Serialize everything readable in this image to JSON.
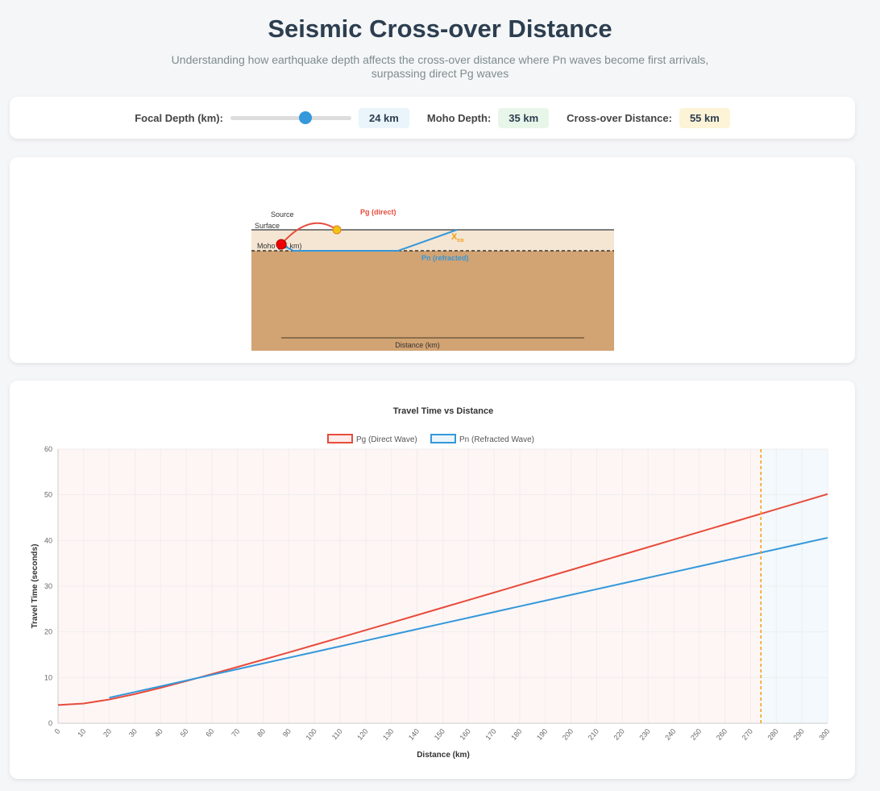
{
  "header": {
    "title": "Seismic Cross-over Distance",
    "subtitle": "Understanding how earthquake depth affects the cross-over distance where Pn waves become first arrivals, surpassing direct Pg waves"
  },
  "controls": {
    "focal_label": "Focal Depth (km):",
    "focal_value": "24 km",
    "focal_slider_fraction": 0.62,
    "moho_label": "Moho Depth:",
    "moho_value": "35 km",
    "crossover_label": "Cross-over Distance:",
    "crossover_value": "55 km"
  },
  "diagram": {
    "surface_label": "Surface",
    "source_label": "Source",
    "moho_label": "Moho (35 km)",
    "pg_label": "Pg (direct)",
    "pn_label": "Pn (refracted)",
    "xco_label": "X",
    "xco_sub": "co",
    "distance_label": "Distance (km)"
  },
  "colors": {
    "pg": "#e74c3c",
    "pn": "#3498db",
    "crossover": "#f39c12"
  },
  "chart_data": {
    "type": "line",
    "title": "Travel Time vs Distance",
    "xlabel": "Distance (km)",
    "ylabel": "Travel Time (seconds)",
    "ylim": [
      0,
      60
    ],
    "yticks": [
      0,
      10,
      20,
      30,
      40,
      50,
      60
    ],
    "grid": true,
    "legend": "top",
    "x": [
      0,
      10,
      20,
      30,
      40,
      50,
      60,
      70,
      80,
      90,
      100,
      110,
      120,
      130,
      140,
      150,
      160,
      170,
      180,
      190,
      200,
      210,
      220,
      230,
      240,
      250,
      260,
      270,
      280,
      290,
      300
    ],
    "series": [
      {
        "name": "Pg (Direct Wave)",
        "values": [
          4.0,
          4.33,
          5.21,
          6.4,
          7.77,
          9.24,
          10.77,
          12.33,
          13.92,
          15.52,
          17.14,
          18.76,
          20.4,
          22.03,
          23.67,
          25.32,
          26.97,
          28.61,
          30.27,
          31.92,
          33.57,
          35.23,
          36.88,
          38.54,
          40.2,
          41.86,
          43.52,
          45.18,
          46.84,
          48.5,
          50.16
        ]
      },
      {
        "name": "Pn (Refracted Wave)",
        "values": [
          null,
          null,
          5.6,
          6.85,
          8.1,
          9.35,
          10.6,
          11.85,
          13.1,
          14.35,
          15.6,
          16.85,
          18.1,
          19.35,
          20.6,
          21.85,
          23.1,
          24.35,
          25.6,
          26.85,
          28.1,
          29.35,
          30.6,
          31.85,
          33.1,
          34.35,
          35.6,
          36.85,
          38.1,
          39.35,
          40.6
        ]
      }
    ],
    "crossover_marker_x": 274
  }
}
